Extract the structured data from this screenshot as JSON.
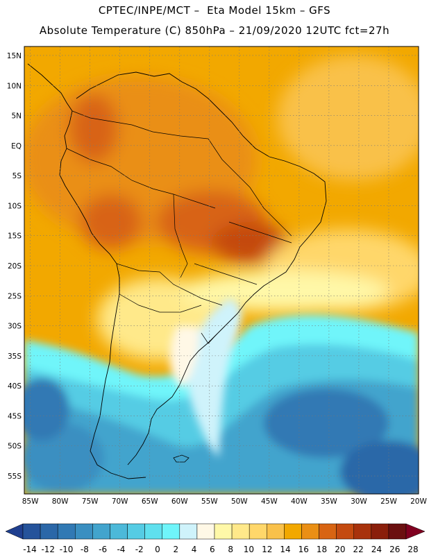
{
  "header": {
    "line1": "CPTEC/INPE/MCT –  Eta Model 15km – GFS",
    "line2": "Absolute Temperature (C) 850hPa – 21/09/2020 12UTC fct=27h"
  },
  "map": {
    "lat_labels": [
      "15N",
      "10N",
      "5N",
      "EQ",
      "5S",
      "10S",
      "15S",
      "20S",
      "25S",
      "30S",
      "35S",
      "40S",
      "45S",
      "50S",
      "55S"
    ],
    "lat_values": [
      15,
      10,
      5,
      0,
      -5,
      -10,
      -15,
      -20,
      -25,
      -30,
      -35,
      -40,
      -45,
      -50,
      -55
    ],
    "lon_labels": [
      "85W",
      "80W",
      "75W",
      "70W",
      "65W",
      "60W",
      "55W",
      "50W",
      "45W",
      "40W",
      "35W",
      "30W",
      "25W",
      "20W"
    ],
    "lon_values": [
      -85,
      -80,
      -75,
      -70,
      -65,
      -60,
      -55,
      -50,
      -45,
      -40,
      -35,
      -30,
      -25,
      -20
    ],
    "lat_range": [
      -58,
      16.5
    ],
    "lon_range": [
      -86,
      -20
    ],
    "grid": "dotted"
  },
  "colorbar": {
    "labels": [
      "-14",
      "-12",
      "-10",
      "-8",
      "-6",
      "-4",
      "-2",
      "0",
      "2",
      "4",
      "6",
      "8",
      "10",
      "12",
      "14",
      "16",
      "18",
      "20",
      "22",
      "24",
      "26",
      "28"
    ],
    "colors": [
      "#1f3f8f",
      "#25539b",
      "#2b67a8",
      "#3179b4",
      "#3a8fc1",
      "#42a4cd",
      "#4cb9d9",
      "#55ccE4",
      "#5fe0ee",
      "#6ff5fa",
      "#cff3fb",
      "#fff8e6",
      "#fff8a8",
      "#ffe98a",
      "#ffd76a",
      "#f9c14a",
      "#f2a800",
      "#ea8f14",
      "#d86412",
      "#c44a10",
      "#a8320c",
      "#8a1f0b",
      "#6b1010",
      "#800020"
    ]
  }
}
